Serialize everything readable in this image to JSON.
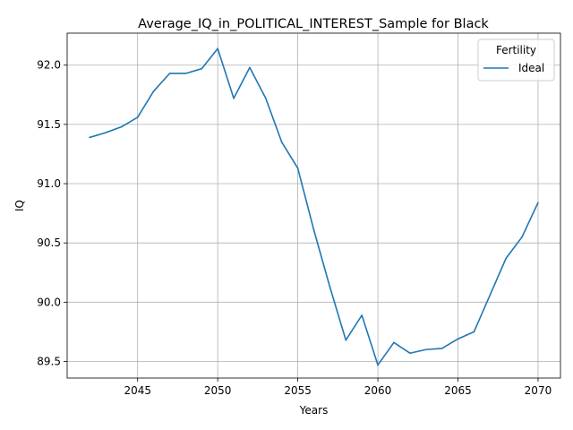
{
  "chart_data": {
    "type": "line",
    "title": "Average_IQ_in_POLITICAL_INTEREST_Sample for Black",
    "xlabel": "Years",
    "ylabel": "IQ",
    "xlim": [
      2040.6,
      2071.4
    ],
    "ylim": [
      89.36,
      92.27
    ],
    "xticks": [
      2045,
      2050,
      2055,
      2060,
      2065,
      2070
    ],
    "yticks": [
      89.5,
      90.0,
      90.5,
      91.0,
      91.5,
      92.0
    ],
    "ytick_labels": [
      "89.5",
      "90.0",
      "90.5",
      "91.0",
      "91.5",
      "92.0"
    ],
    "grid": true,
    "legend": {
      "title": "Fertility",
      "placement": "top-right"
    },
    "series": [
      {
        "name": "Ideal",
        "color": "#1f77b4",
        "x": [
          2042,
          2043,
          2044,
          2045,
          2046,
          2047,
          2048,
          2049,
          2050,
          2051,
          2052,
          2053,
          2054,
          2055,
          2056,
          2057,
          2058,
          2059,
          2060,
          2061,
          2062,
          2063,
          2064,
          2065,
          2066,
          2067,
          2068,
          2069,
          2070
        ],
        "y": [
          91.39,
          91.43,
          91.48,
          91.56,
          91.78,
          91.93,
          91.93,
          91.97,
          92.14,
          91.72,
          91.98,
          91.72,
          91.35,
          91.13,
          90.61,
          90.13,
          89.68,
          89.89,
          89.47,
          89.66,
          89.57,
          89.6,
          89.61,
          89.69,
          89.75,
          90.06,
          90.37,
          90.55,
          90.84
        ]
      }
    ]
  }
}
